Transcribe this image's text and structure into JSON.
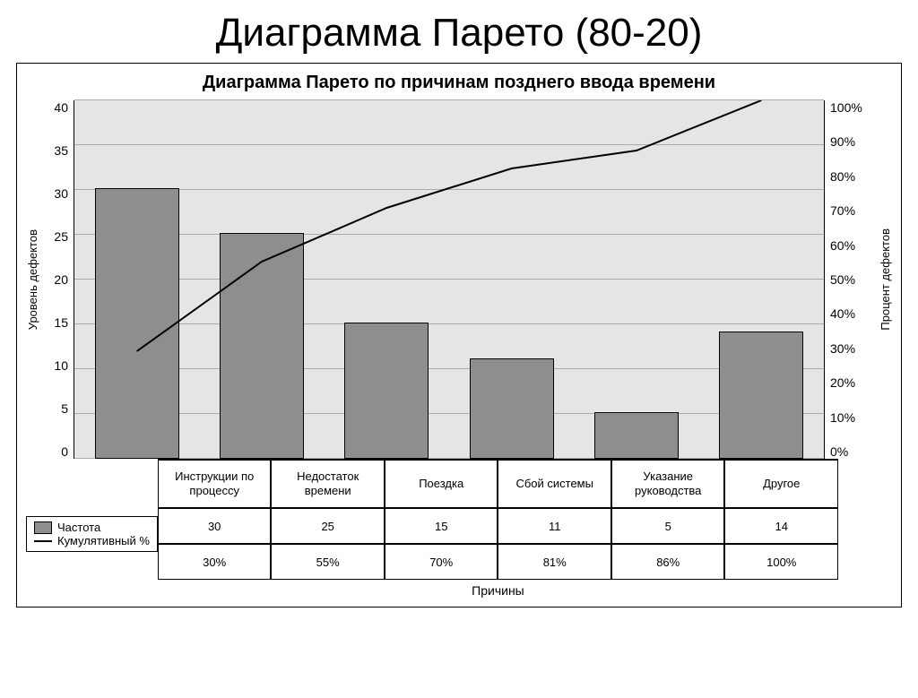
{
  "main_title": "Диаграмма Парето (80-20)",
  "chart": {
    "type": "pareto",
    "subtitle": "Диаграмма Парето по причинам позднего ввода времени",
    "background_color": "#e5e5e5",
    "grid_color": "#aaaaaa",
    "bar_color": "#8e8e8e",
    "bar_border_color": "#000000",
    "line_color": "#000000",
    "line_width": 2,
    "bar_width_ratio": 0.66,
    "y_left": {
      "label": "Уровень дефектов",
      "min": 0,
      "max": 40,
      "ticks": [
        40,
        35,
        30,
        25,
        20,
        15,
        10,
        5,
        0
      ]
    },
    "y_right": {
      "label": "Процент дефектов",
      "min": 0,
      "max": 100,
      "ticks": [
        "100%",
        "90%",
        "80%",
        "70%",
        "60%",
        "50%",
        "40%",
        "30%",
        "20%",
        "10%",
        "0%"
      ]
    },
    "categories": [
      "Инструкции по процессу",
      "Недостаток времени",
      "Поездка",
      "Сбой системы",
      "Указание руководства",
      "Другое"
    ],
    "frequencies": [
      30,
      25,
      15,
      11,
      5,
      14
    ],
    "cumulative_pct": [
      30,
      55,
      70,
      81,
      86,
      100
    ],
    "cumulative_labels": [
      "30%",
      "55%",
      "70%",
      "81%",
      "86%",
      "100%"
    ],
    "x_axis_title": "Причины",
    "legend": {
      "freq_label": "Частота",
      "cum_label": "Кумулятивный %"
    }
  }
}
